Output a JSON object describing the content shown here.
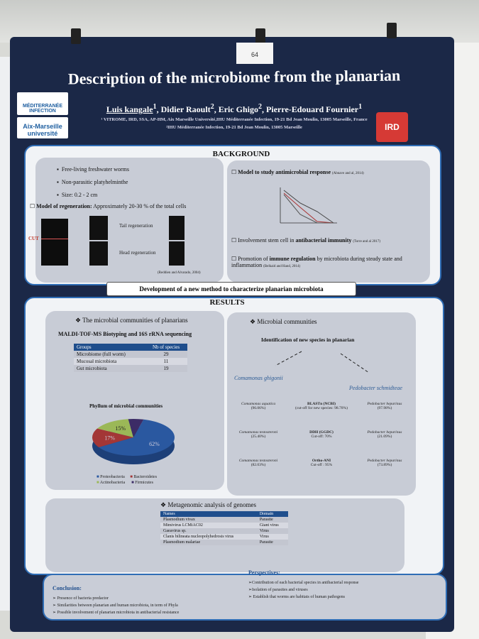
{
  "poster": {
    "board_number": "64",
    "title": "Description of the microbiome from the planarian",
    "authors": [
      {
        "name": "Luis kangale",
        "sup": "1"
      },
      {
        "name": "Didier Raoult",
        "sup": "2"
      },
      {
        "name": "Eric Ghigo",
        "sup": "2"
      },
      {
        "name": "Pierre-Edouard Fournier",
        "sup": "1"
      }
    ],
    "affiliations": [
      "¹ VITROME, IRD, SSA, AP-HM, Aix Marseille Université,IHU Méditerranée Infection, 19-21 Bd Jean Moulin, 13005 Marseille, France",
      "²IHU Méditerranée Infection, 19-21 Bd Jean Moulin, 13005 Marseille"
    ],
    "logos": [
      "MÉDITERRANÉE INFECTION",
      "Aix-Marseille université",
      "IRD"
    ],
    "background": {
      "heading": "BACKGROUND",
      "bullets": [
        "Free-living freshwater worms",
        "Non-parasitic platyhelminthe",
        "Size: 0.2 - 2 cm"
      ],
      "regeneration_label": "Model of regeneration:",
      "regeneration_text": "Approximately 20-30 % of the total cells",
      "cut_label": "CUT",
      "tail": "Tail regeneration",
      "head": "Head regeneration",
      "regen_ref": "(Reddien and Alvarado, 2004)",
      "antimicrobial_label": "Model to study antimicrobial response",
      "antimicrobial_ref": "(Abnave and al, 2014)",
      "stem_text": "Involvement stem cell in",
      "stem_bold": "antibacterial immunity",
      "stem_ref": "(Torre and al 2017)",
      "immune_pre": "Promotion of",
      "immune_bold": "immune regulation",
      "immune_post": "by microbiota during steady state and inflammation",
      "immune_ref": "(Belkaid and Hand, 2014)"
    },
    "method_banner": "Development of a new method to characterize planarian microbiota",
    "results": {
      "heading": "RESULTS",
      "communities_title": "The microbial communities of planarians",
      "maldi_title": "MALDI-TOF-MS Biotyping and 16S rRNA sequencing",
      "table_headers": [
        "Groups",
        "Nb of species"
      ],
      "table_rows": [
        [
          "Microbiome (full worm)",
          "29"
        ],
        [
          "Mucosal microbiota",
          "11"
        ],
        [
          "Gut microbiota",
          "19"
        ]
      ],
      "pie_title": "Phyllum of  microbial communities",
      "pie": [
        {
          "name": "Proteobacteria",
          "value": 62,
          "label": "62%",
          "color": "#2a58a0"
        },
        {
          "name": "Bacteroidetes",
          "value": 17,
          "label": "17%",
          "color": "#a33636"
        },
        {
          "name": "Actinobacteria",
          "value": 15,
          "label": "15%",
          "color": "#9bb857"
        },
        {
          "name": "Firmicutes",
          "value": 6,
          "label": "",
          "color": "#3c2c66"
        }
      ],
      "microbial_title": "Microbial communities",
      "identification": "Identification of  new species in planarian",
      "species_left": "Comamonas ghigonii",
      "species_right": "Pedobacter schmidteae",
      "rows": [
        {
          "left": "Comamonas aquatica",
          "left_val": "(96.06%)",
          "mid": "BLASTn (NCBI)",
          "mid_sub": "(cut-off for new species: 98.70%)",
          "right": "Pedobacter heparinus",
          "right_val": "(97.98%)"
        },
        {
          "left": "Comamonas testosteroni",
          "left_val": "(25.40%)",
          "mid": "DDH (GGDC)",
          "mid_sub": "Cut-off: 70%",
          "right": "Pedobacter heparinus",
          "right_val": "(21.09%)"
        },
        {
          "left": "Comamonas testosteroni",
          "left_val": "(82.03%)",
          "mid": "Ortho-ANI",
          "mid_sub": "Cut-off : 95%",
          "right": "Pedobacter heparinus",
          "right_val": "(73.89%)"
        }
      ],
      "metagenomic_title": "Metagenomic analysis of genomes",
      "meta_headers": [
        "Names",
        "Domain"
      ],
      "meta_rows": [
        [
          "Plasmodium vivax",
          "Parasite"
        ],
        [
          "Mimivirus LCMiAC02",
          "Giant virus"
        ],
        [
          "Gaeavirus sp.",
          "Virus"
        ],
        [
          "Clanis bilineata nucleopolyhedrosis virus",
          "Virus"
        ],
        [
          "Plasmodium malariae",
          "Parasite"
        ]
      ]
    },
    "conclusion": {
      "heading": "Conclusion:",
      "items": [
        "Presence of bacteria predactor",
        "Similarities between planarian and human microbiota, in term of Phyla",
        "Possible involvement of planarian microbiota in antibacterial resistance"
      ]
    },
    "perspectives": {
      "heading": "Perspectives:",
      "items": [
        "Contribution of each bacterial species in antibacterial response",
        "Isolation of parasites and viruses",
        "Establish that worms are habitats of human pathogens"
      ]
    }
  }
}
